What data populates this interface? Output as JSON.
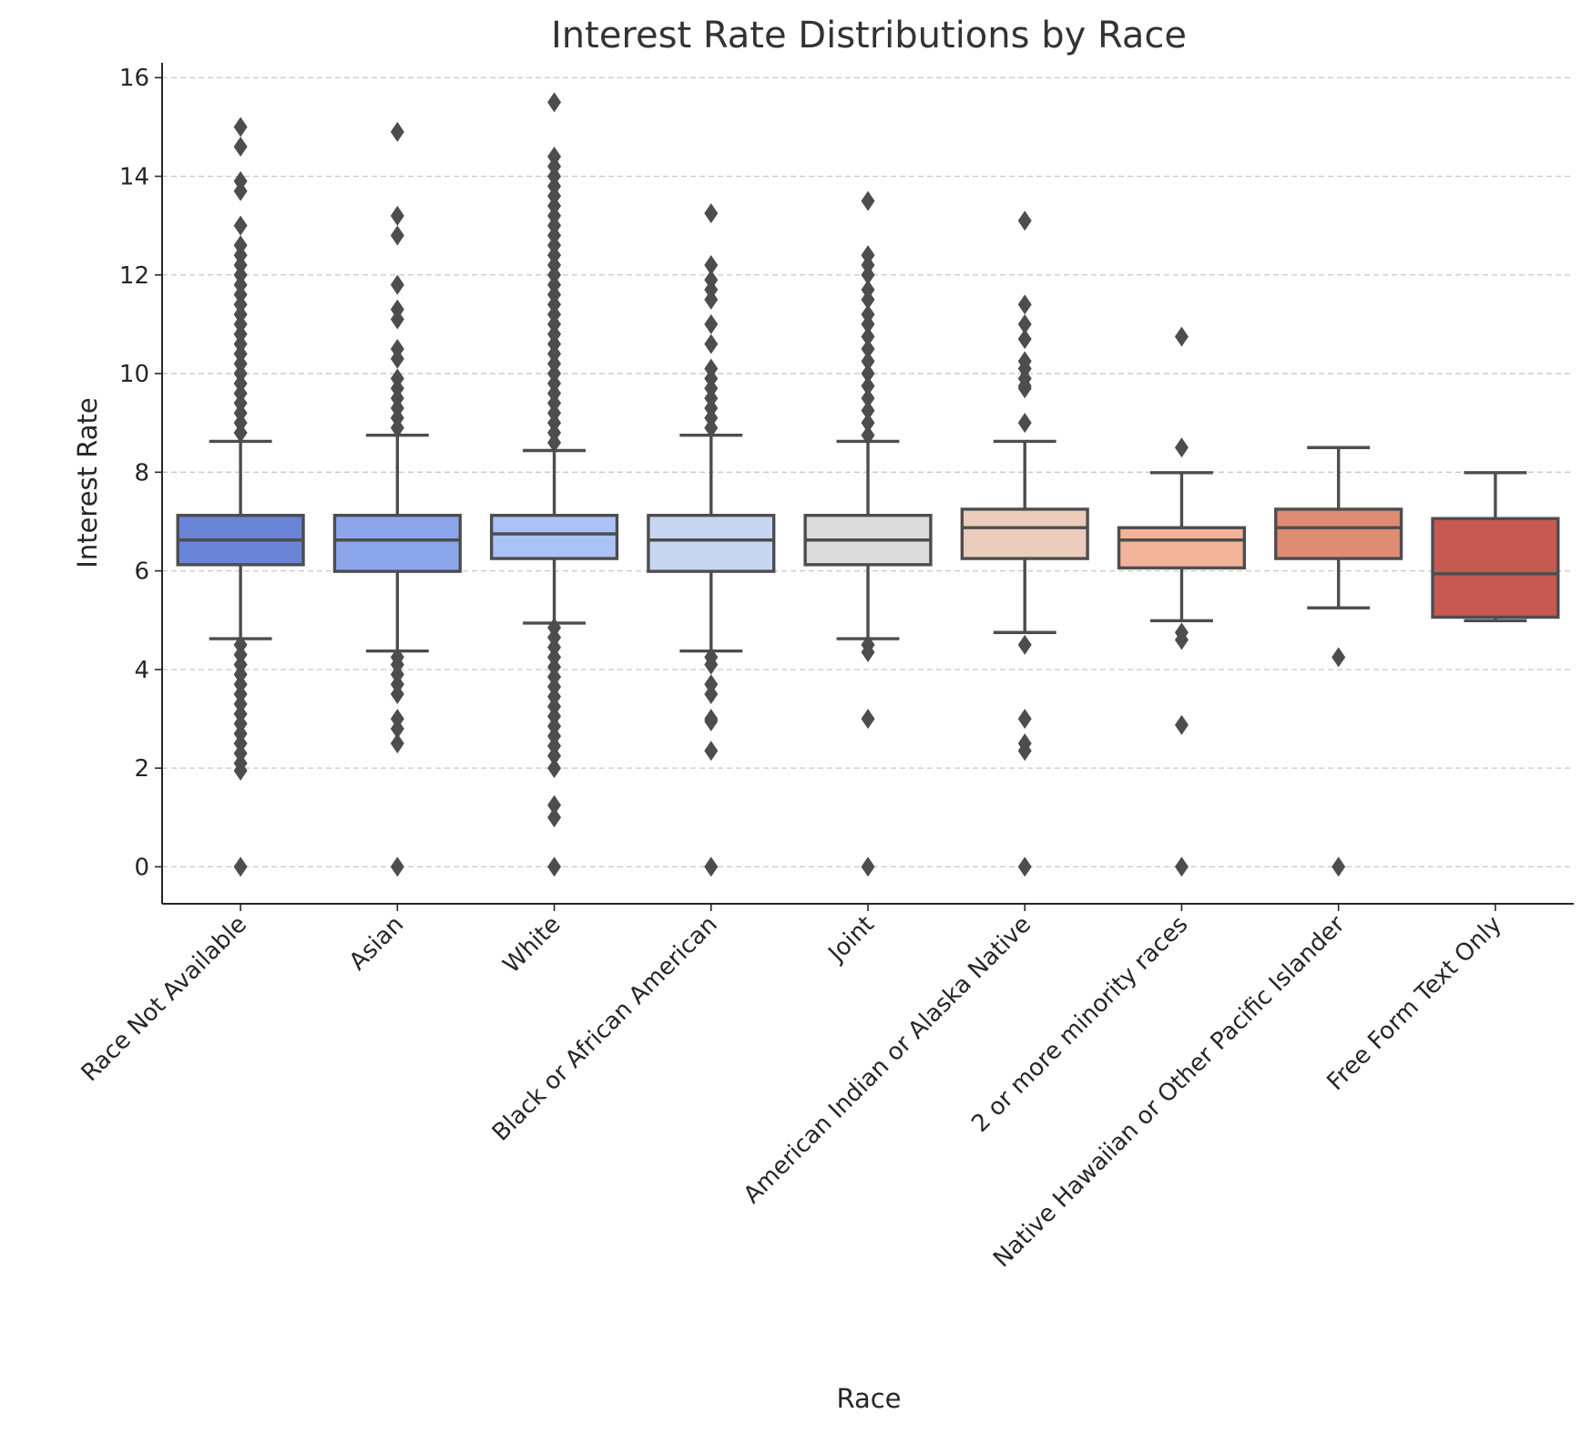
{
  "chart_data": {
    "type": "box",
    "title": "Interest Rate Distributions by Race",
    "xlabel": "Race",
    "ylabel": "Interest Rate",
    "ylim": [
      -0.75,
      16.3
    ],
    "yticks": [
      0,
      2,
      4,
      6,
      8,
      10,
      12,
      14,
      16
    ],
    "grid": "horizontal dashed",
    "categories": [
      "Race Not Available",
      "Asian",
      "White",
      "Black or African American",
      "Joint",
      "American Indian or Alaska Native",
      "2 or more minority races",
      "Native Hawaiian or Other Pacific Islander",
      "Free Form Text Only"
    ],
    "boxes": [
      {
        "name": "Race Not Available",
        "color": "#6a84d8",
        "whisker_low": 4.625,
        "q1": 6.125,
        "median": 6.625,
        "q3": 7.125,
        "whisker_high": 8.625,
        "fliers": [
          15.0,
          14.6,
          13.9,
          13.7,
          13.0,
          12.6,
          12.4,
          12.2,
          12.0,
          11.8,
          11.6,
          11.4,
          11.2,
          11.0,
          10.8,
          10.6,
          10.4,
          10.2,
          10.0,
          9.8,
          9.6,
          9.4,
          9.2,
          9.0,
          8.8,
          4.5,
          4.3,
          4.1,
          3.9,
          3.7,
          3.5,
          3.3,
          3.1,
          2.9,
          2.7,
          2.5,
          2.3,
          2.1,
          1.95,
          0.0
        ]
      },
      {
        "name": "Asian",
        "color": "#8ba6ea",
        "whisker_low": 4.375,
        "q1": 5.99,
        "median": 6.625,
        "q3": 7.125,
        "whisker_high": 8.75,
        "fliers": [
          14.9,
          13.2,
          12.8,
          11.8,
          11.3,
          11.1,
          10.5,
          10.3,
          9.9,
          9.7,
          9.5,
          9.3,
          9.1,
          8.9,
          4.25,
          4.1,
          3.9,
          3.7,
          3.5,
          3.0,
          2.8,
          2.5,
          0.0
        ]
      },
      {
        "name": "White",
        "color": "#aac2f6",
        "whisker_low": 4.94,
        "q1": 6.25,
        "median": 6.75,
        "q3": 7.125,
        "whisker_high": 8.44,
        "fliers": [
          15.5,
          14.4,
          14.2,
          14.0,
          13.8,
          13.6,
          13.4,
          13.2,
          13.0,
          12.8,
          12.6,
          12.4,
          12.2,
          12.0,
          11.8,
          11.6,
          11.4,
          11.2,
          11.0,
          10.8,
          10.6,
          10.4,
          10.2,
          10.0,
          9.8,
          9.6,
          9.4,
          9.2,
          9.0,
          8.8,
          8.6,
          4.85,
          4.65,
          4.45,
          4.25,
          4.05,
          3.85,
          3.65,
          3.45,
          3.25,
          3.05,
          2.85,
          2.65,
          2.45,
          2.25,
          2.0,
          1.25,
          1.0,
          0.0
        ]
      },
      {
        "name": "Black or African American",
        "color": "#c8d6f1",
        "whisker_low": 4.375,
        "q1": 5.99,
        "median": 6.625,
        "q3": 7.125,
        "whisker_high": 8.75,
        "fliers": [
          13.25,
          12.2,
          11.9,
          11.7,
          11.5,
          11.0,
          10.6,
          10.1,
          9.9,
          9.7,
          9.5,
          9.3,
          9.1,
          8.9,
          4.25,
          4.1,
          3.7,
          3.5,
          3.0,
          2.95,
          2.35,
          0.0
        ]
      },
      {
        "name": "Joint",
        "color": "#dcdcdc",
        "whisker_low": 4.625,
        "q1": 6.125,
        "median": 6.625,
        "q3": 7.125,
        "whisker_high": 8.625,
        "fliers": [
          13.5,
          12.4,
          12.2,
          12.0,
          11.7,
          11.5,
          11.2,
          11.0,
          10.75,
          10.5,
          10.25,
          10.0,
          9.75,
          9.5,
          9.25,
          9.0,
          8.75,
          4.5,
          4.35,
          3.0,
          0.0
        ]
      },
      {
        "name": "American Indian or Alaska Native",
        "color": "#ecccbc",
        "whisker_low": 4.75,
        "q1": 6.25,
        "median": 6.875,
        "q3": 7.25,
        "whisker_high": 8.625,
        "fliers": [
          13.1,
          11.4,
          11.0,
          10.7,
          10.25,
          10.1,
          9.9,
          9.75,
          9.7,
          9.0,
          4.5,
          3.0,
          2.5,
          2.35,
          0.0
        ]
      },
      {
        "name": "2 or more minority races",
        "color": "#f3b39a",
        "whisker_low": 4.99,
        "q1": 6.06,
        "median": 6.625,
        "q3": 6.875,
        "whisker_high": 7.99,
        "fliers": [
          10.75,
          8.5,
          4.75,
          4.6,
          2.875,
          0.0
        ]
      },
      {
        "name": "Native Hawaiian or Other Pacific Islander",
        "color": "#e08c74",
        "whisker_low": 5.25,
        "q1": 6.25,
        "median": 6.875,
        "q3": 7.25,
        "whisker_high": 8.5,
        "fliers": [
          4.25,
          0.0
        ]
      },
      {
        "name": "Free Form Text Only",
        "color": "#c65a52",
        "whisker_low": 4.99,
        "q1": 5.06,
        "median": 5.94,
        "q3": 7.06,
        "whisker_high": 7.99,
        "fliers": []
      }
    ]
  }
}
